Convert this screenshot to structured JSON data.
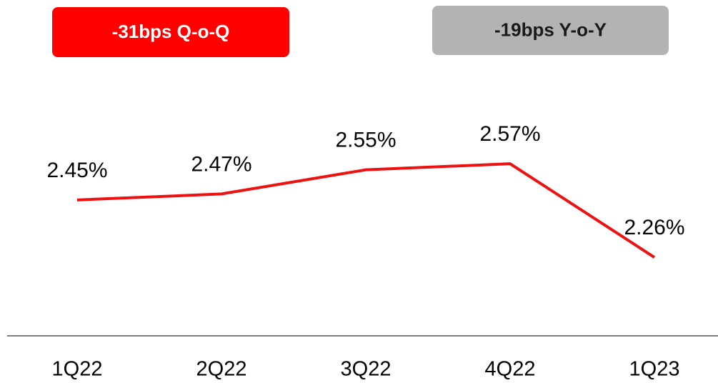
{
  "chart_data": {
    "type": "line",
    "annotations": [
      {
        "text": "-31bps Q-o-Q",
        "color": "#ff0000",
        "text_color": "#ffffff"
      },
      {
        "text": "-19bps Y-o-Y",
        "color": "#b3b3b3",
        "text_color": "#1a1a1a"
      }
    ],
    "categories": [
      "1Q22",
      "2Q22",
      "3Q22",
      "4Q22",
      "1Q23"
    ],
    "values": [
      2.45,
      2.47,
      2.55,
      2.57,
      2.26
    ],
    "value_labels": [
      "2.45%",
      "2.47%",
      "2.55%",
      "2.57%",
      "2.26%"
    ],
    "color": "#ee1111",
    "ylim": [
      2.0,
      2.9
    ]
  }
}
